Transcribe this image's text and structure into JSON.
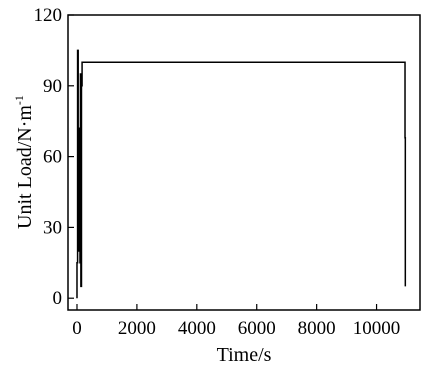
{
  "chart_data": {
    "type": "line",
    "title": "",
    "xlabel": "Time/s",
    "ylabel": {
      "main": "Unit Load/N·m",
      "sup": "-1"
    },
    "xlim": [
      -300,
      11450
    ],
    "ylim": [
      -5,
      120
    ],
    "xticks": [
      0,
      2000,
      4000,
      6000,
      8000,
      10000
    ],
    "xtick_labels": [
      "0",
      "2000",
      "4000",
      "6000",
      "8000",
      "10000"
    ],
    "yticks": [
      0,
      30,
      60,
      90,
      120
    ],
    "ytick_labels": [
      "0",
      "30",
      "60",
      "90",
      "120"
    ],
    "grid": false,
    "legend": "none",
    "line_color": "#000000",
    "series": [
      {
        "x": [
          0,
          0,
          20,
          20,
          40,
          40,
          55,
          55,
          70,
          70,
          85,
          85,
          100,
          100,
          115,
          115,
          130,
          130,
          150,
          150,
          170,
          170,
          10950,
          10950,
          10960,
          10960
        ],
        "y": [
          0,
          15,
          15,
          105,
          105,
          20,
          20,
          72,
          72,
          25,
          25,
          65,
          65,
          15,
          15,
          95,
          95,
          5,
          5,
          90,
          90,
          100,
          100,
          68,
          68,
          5
        ]
      }
    ]
  }
}
